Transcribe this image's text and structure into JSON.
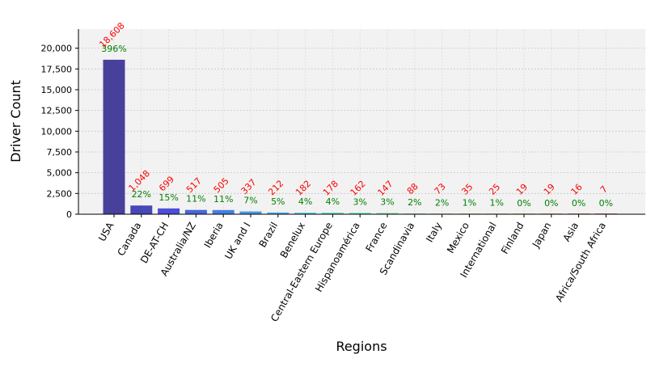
{
  "chart_data": {
    "type": "bar",
    "xlabel": "Regions",
    "ylabel": "Driver Count",
    "ylim": [
      0,
      22300
    ],
    "yticks": [
      0,
      2500,
      5000,
      7500,
      10000,
      12500,
      15000,
      17500,
      20000
    ],
    "ytick_labels": [
      "0",
      "2,500",
      "5,000",
      "7,500",
      "10,000",
      "12,500",
      "15,000",
      "17,500",
      "20,000"
    ],
    "grid": true,
    "categories": [
      "USA",
      "Canada",
      "DE-AT-CH",
      "Australia/NZ",
      "Iberia",
      "UK and I",
      "Brazil",
      "Benelux",
      "Central-Eastern Europe",
      "Hispanoamérica",
      "France",
      "Scandinavia",
      "Italy",
      "Mexico",
      "International",
      "Finland",
      "Japan",
      "Asia",
      "Africa/South Africa"
    ],
    "values": [
      18608,
      1048,
      699,
      517,
      505,
      337,
      212,
      182,
      178,
      162,
      147,
      88,
      73,
      35,
      25,
      19,
      19,
      16,
      7
    ],
    "value_labels": [
      "18,608",
      "1,048",
      "699",
      "517",
      "505",
      "337",
      "212",
      "182",
      "178",
      "162",
      "147",
      "88",
      "73",
      "35",
      "25",
      "19",
      "19",
      "16",
      "7"
    ],
    "pct_labels": [
      "396%",
      "22%",
      "15%",
      "11%",
      "11%",
      "7%",
      "5%",
      "4%",
      "4%",
      "3%",
      "3%",
      "2%",
      "2%",
      "1%",
      "1%",
      "0%",
      "0%",
      "0%",
      "0%"
    ],
    "colors": [
      "#48419b",
      "#4747b8",
      "#4b4fd8",
      "#4867dd",
      "#4580e2",
      "#4a9ae6",
      "#47b2e5",
      "#4bc8dc",
      "#52d8c8",
      "#5cdfae",
      "#6de29a",
      "#86e587",
      "#a3e574",
      "#bfe066",
      "#d4d45a",
      "#e3b650",
      "#e89447",
      "#e56a3d",
      "#d63c2d"
    ],
    "value_label_color": "#ff0000",
    "pct_label_color": "#008000",
    "plot_background": "#f2f2f2"
  }
}
